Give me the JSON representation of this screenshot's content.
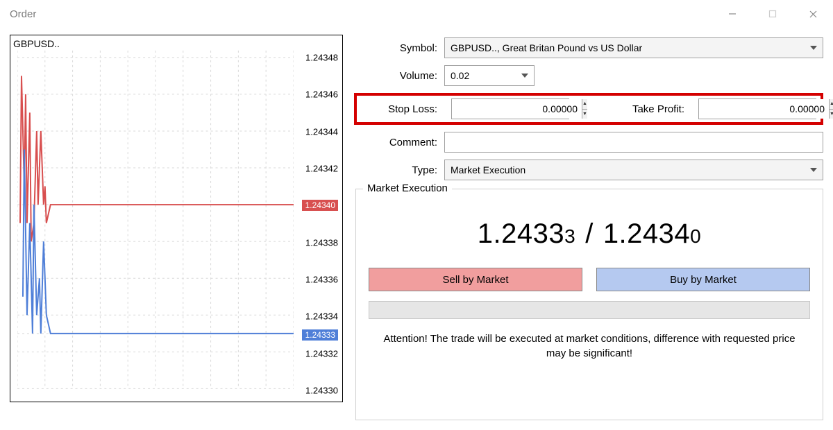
{
  "window": {
    "title": "Order"
  },
  "chart": {
    "ticker": "GBPUSD..",
    "y_axis": {
      "min": 1.2433,
      "max": 1.24348,
      "step": 2e-05,
      "ticks": [
        1.2433,
        1.24332,
        1.24333,
        1.24334,
        1.24336,
        1.24338,
        1.2434,
        1.24342,
        1.24344,
        1.24346,
        1.24348
      ],
      "labels": [
        "1.24330",
        "1.24332",
        "1.24333",
        "1.24334",
        "1.24336",
        "1.24338",
        "1.24340",
        "1.24342",
        "1.24344",
        "1.24346",
        "1.24348"
      ]
    },
    "grid_color": "#d8d8d8",
    "colors": {
      "ask": "#d84f4f",
      "bid": "#4f7fd8"
    },
    "ask_line": 1.2434,
    "bid_line": 1.24333,
    "ask_tag": "1.24340",
    "bid_tag": "1.24333",
    "series_ask": [
      {
        "x": 0.01,
        "y": 1.24339
      },
      {
        "x": 0.015,
        "y": 1.24347
      },
      {
        "x": 0.025,
        "y": 1.24341
      },
      {
        "x": 0.03,
        "y": 1.24346
      },
      {
        "x": 0.035,
        "y": 1.24339
      },
      {
        "x": 0.045,
        "y": 1.24345
      },
      {
        "x": 0.05,
        "y": 1.24338
      },
      {
        "x": 0.06,
        "y": 1.24339
      },
      {
        "x": 0.07,
        "y": 1.24344
      },
      {
        "x": 0.075,
        "y": 1.2434
      },
      {
        "x": 0.085,
        "y": 1.24344
      },
      {
        "x": 0.095,
        "y": 1.2434
      },
      {
        "x": 0.1,
        "y": 1.24341
      },
      {
        "x": 0.105,
        "y": 1.24339
      },
      {
        "x": 0.12,
        "y": 1.2434
      },
      {
        "x": 1.0,
        "y": 1.2434
      }
    ],
    "series_bid": [
      {
        "x": 0.02,
        "y": 1.24335
      },
      {
        "x": 0.025,
        "y": 1.24343
      },
      {
        "x": 0.035,
        "y": 1.24334
      },
      {
        "x": 0.045,
        "y": 1.24339
      },
      {
        "x": 0.055,
        "y": 1.24333
      },
      {
        "x": 0.06,
        "y": 1.2434
      },
      {
        "x": 0.07,
        "y": 1.24334
      },
      {
        "x": 0.08,
        "y": 1.24336
      },
      {
        "x": 0.085,
        "y": 1.24333
      },
      {
        "x": 0.095,
        "y": 1.24338
      },
      {
        "x": 0.105,
        "y": 1.24334
      },
      {
        "x": 0.12,
        "y": 1.24333
      },
      {
        "x": 1.0,
        "y": 1.24333
      }
    ]
  },
  "form": {
    "symbol_label": "Symbol:",
    "symbol_value": "GBPUSD.., Great Britan Pound vs US Dollar",
    "volume_label": "Volume:",
    "volume_value": "0.02",
    "stop_loss_label": "Stop Loss:",
    "stop_loss_value": "0.00000",
    "take_profit_label": "Take Profit:",
    "take_profit_value": "0.00000",
    "comment_label": "Comment:",
    "comment_value": "",
    "type_label": "Type:",
    "type_value": "Market Execution"
  },
  "exec": {
    "group_title": "Market Execution",
    "bid_major": "1.2433",
    "bid_minor": "3",
    "ask_major": "1.2434",
    "ask_minor": "0",
    "sep": "/",
    "sell_label": "Sell by Market",
    "buy_label": "Buy by Market",
    "note": "Attention! The trade will be executed at market conditions, difference with requested price may be significant!"
  }
}
